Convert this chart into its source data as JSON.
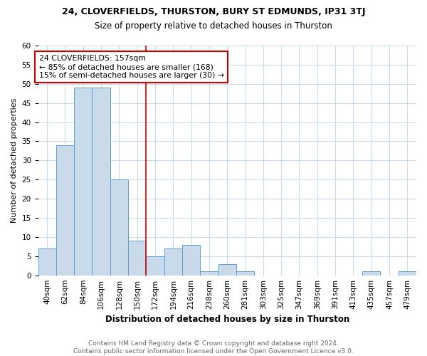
{
  "title1": "24, CLOVERFIELDS, THURSTON, BURY ST EDMUNDS, IP31 3TJ",
  "title2": "Size of property relative to detached houses in Thurston",
  "xlabel": "Distribution of detached houses by size in Thurston",
  "ylabel": "Number of detached properties",
  "footnote": "Contains HM Land Registry data © Crown copyright and database right 2024.\nContains public sector information licensed under the Open Government Licence v3.0.",
  "bar_labels": [
    "40sqm",
    "62sqm",
    "84sqm",
    "106sqm",
    "128sqm",
    "150sqm",
    "172sqm",
    "194sqm",
    "216sqm",
    "238sqm",
    "260sqm",
    "281sqm",
    "303sqm",
    "325sqm",
    "347sqm",
    "369sqm",
    "391sqm",
    "413sqm",
    "435sqm",
    "457sqm",
    "479sqm"
  ],
  "bar_values": [
    7,
    34,
    49,
    49,
    25,
    9,
    5,
    7,
    8,
    1,
    3,
    1,
    0,
    0,
    0,
    0,
    0,
    0,
    1,
    0,
    1
  ],
  "bar_color": "#c9daea",
  "bar_edge_color": "#5a9fd4",
  "annotation_text_line1": "24 CLOVERFIELDS: 157sqm",
  "annotation_text_line2": "← 85% of detached houses are smaller (168)",
  "annotation_text_line3": "15% of semi-detached houses are larger (30) →",
  "annotation_box_facecolor": "#ffffff",
  "annotation_box_edgecolor": "#cc0000",
  "vline_color": "#cc0000",
  "vline_x": 5.5,
  "ylim": [
    0,
    60
  ],
  "yticks": [
    0,
    5,
    10,
    15,
    20,
    25,
    30,
    35,
    40,
    45,
    50,
    55,
    60
  ],
  "grid_color": "#c9daea",
  "background_color": "#ffffff",
  "title1_fontsize": 9,
  "title2_fontsize": 8.5,
  "title1_fontweight": "normal",
  "xlabel_fontsize": 8.5,
  "ylabel_fontsize": 8,
  "footnote_fontsize": 6.5,
  "footnote_color": "#666666",
  "tick_fontsize": 7.5
}
